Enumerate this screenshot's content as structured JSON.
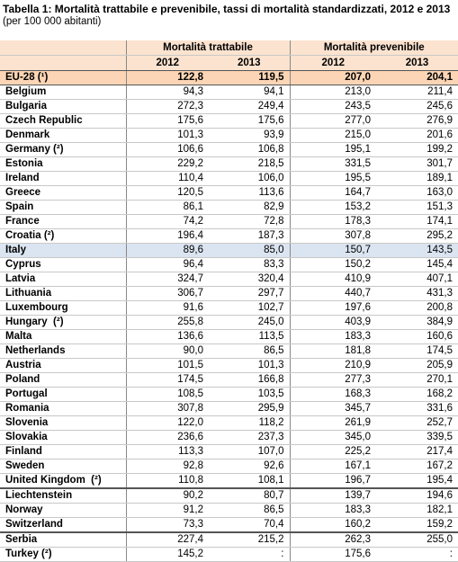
{
  "header": {
    "title": "Tabella 1: Mortalità trattabile e prevenibile, tassi di mortalità standardizzati, 2012 e 2013",
    "subtitle": "(per 100 000 abitanti)"
  },
  "table": {
    "groups": [
      "Mortalità trattabile",
      "Mortalità prevenibile"
    ],
    "years": [
      "2012",
      "2013",
      "2012",
      "2013"
    ],
    "rows": [
      [
        "EU-28 (¹)",
        "122,8",
        "119,5",
        "207,0",
        "204,1"
      ],
      [
        "Belgium",
        "94,3",
        "94,1",
        "213,0",
        "211,4"
      ],
      [
        "Bulgaria",
        "272,3",
        "249,4",
        "243,5",
        "245,6"
      ],
      [
        "Czech Republic",
        "175,6",
        "175,6",
        "277,0",
        "276,9"
      ],
      [
        "Denmark",
        "101,3",
        "93,9",
        "215,0",
        "201,6"
      ],
      [
        "Germany (²)",
        "106,6",
        "106,8",
        "195,1",
        "199,2"
      ],
      [
        "Estonia",
        "229,2",
        "218,5",
        "331,5",
        "301,7"
      ],
      [
        "Ireland",
        "110,4",
        "106,0",
        "195,5",
        "189,1"
      ],
      [
        "Greece",
        "120,5",
        "113,6",
        "164,7",
        "163,0"
      ],
      [
        "Spain",
        "86,1",
        "82,9",
        "153,2",
        "151,3"
      ],
      [
        "France",
        "74,2",
        "72,8",
        "178,3",
        "174,1"
      ],
      [
        "Croatia (²)",
        "196,4",
        "187,3",
        "307,8",
        "295,2"
      ],
      [
        "Italy",
        "89,6",
        "85,0",
        "150,7",
        "143,5"
      ],
      [
        "Cyprus",
        "96,4",
        "83,3",
        "150,2",
        "145,4"
      ],
      [
        "Latvia",
        "324,7",
        "320,4",
        "410,9",
        "407,1"
      ],
      [
        "Lithuania",
        "306,7",
        "297,7",
        "440,7",
        "431,3"
      ],
      [
        "Luxembourg",
        "91,6",
        "102,7",
        "197,6",
        "200,8"
      ],
      [
        "Hungary  (²)",
        "255,8",
        "245,0",
        "403,9",
        "384,9"
      ],
      [
        "Malta",
        "136,6",
        "113,5",
        "183,3",
        "160,6"
      ],
      [
        "Netherlands",
        "90,0",
        "86,5",
        "181,8",
        "174,5"
      ],
      [
        "Austria",
        "101,5",
        "101,3",
        "210,9",
        "205,9"
      ],
      [
        "Poland",
        "174,5",
        "166,8",
        "277,3",
        "270,1"
      ],
      [
        "Portugal",
        "108,5",
        "103,5",
        "168,3",
        "168,2"
      ],
      [
        "Romania",
        "307,8",
        "295,9",
        "345,7",
        "331,6"
      ],
      [
        "Slovenia",
        "122,0",
        "118,2",
        "261,9",
        "252,7"
      ],
      [
        "Slovakia",
        "236,6",
        "237,3",
        "345,0",
        "339,5"
      ],
      [
        "Finland",
        "113,3",
        "107,0",
        "225,2",
        "217,4"
      ],
      [
        "Sweden",
        "92,8",
        "92,6",
        "167,1",
        "167,2"
      ],
      [
        "United Kingdom  (²)",
        "110,8",
        "108,1",
        "196,7",
        "195,4"
      ],
      [
        "Liechtenstein",
        "90,2",
        "80,7",
        "139,7",
        "194,6"
      ],
      [
        "Norway",
        "91,2",
        "86,5",
        "183,3",
        "182,1"
      ],
      [
        "Switzerland",
        "73,3",
        "70,4",
        "160,2",
        "159,2"
      ],
      [
        "Serbia",
        "227,4",
        "215,2",
        "262,3",
        "255,0"
      ],
      [
        "Turkey (²)",
        "145,2",
        ":",
        "175,6",
        ":"
      ]
    ]
  }
}
